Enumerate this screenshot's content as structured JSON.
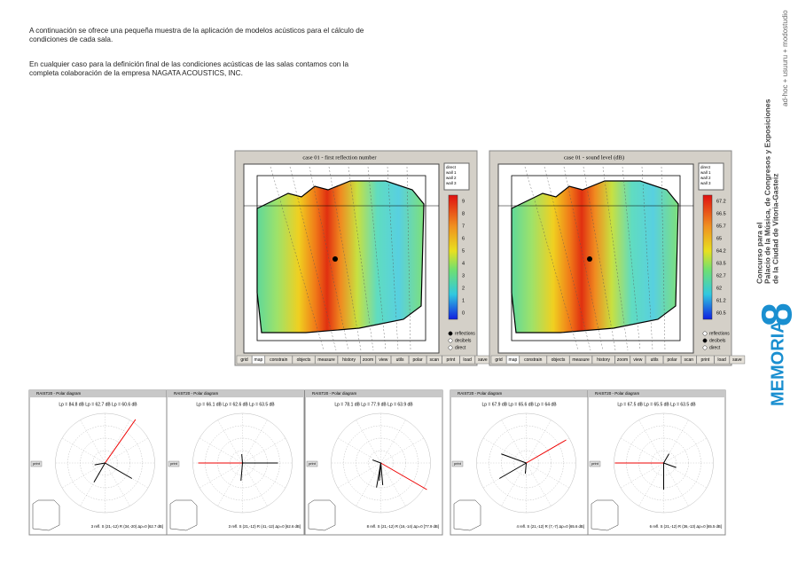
{
  "intro": [
    "A continuación se ofrece una pequeña muestra de la aplicación de modelos acústicos para el cálculo de condiciones de cada sala.",
    "En cualquier caso para la definición final de las condiciones acústicas de las salas contamos con la completa colaboración de la empresa NAGATA ACOUSTICS, INC."
  ],
  "sidebar": {
    "authors": "ad-hoc + usuuru + modostudio",
    "project": [
      "Concurso para el",
      "Palacio de la Música, de Congresos y Exposiciones",
      "de la Ciudad de Vitoria-Gasteiz"
    ],
    "section": "MEMORIA",
    "number": "8"
  },
  "toolbar": [
    "grid",
    "map",
    "constrain",
    "objects",
    "measure",
    "history",
    "zoom",
    "view",
    "utils",
    "polar",
    "scan",
    "print",
    "load",
    "save"
  ],
  "surfaces": [
    "direct",
    "wall 1",
    "wall 2",
    "wall 3"
  ],
  "modes": [
    "reflections",
    "decibels",
    "direct"
  ],
  "simulations": [
    {
      "title": "case 01  -  first reflection number",
      "scale": [
        "9",
        "8",
        "7",
        "6",
        "5",
        "4",
        "3",
        "2",
        "1",
        "0"
      ]
    },
    {
      "title": "case 01  -  sound level (dB)",
      "scale": [
        "67.2",
        "66.5",
        "65.7",
        "65",
        "64.2",
        "63.5",
        "62.7",
        "62",
        "61.2",
        "60.5"
      ]
    }
  ],
  "polar_window": "RAIST20 - Polar diagram",
  "polar_button": "print",
  "polars": [
    {
      "levels": "Lp = 84.8 dB   Lp = 62.7 dB   Lp = 60.6 dB",
      "footer": "3 refl. S (21,-12)  R (34,-20)  Δp=0  [62.7 dB]"
    },
    {
      "levels": "Lp = 66.1 dB   Lp = 62.6 dB   Lp = 63.5 dB",
      "footer": "3 refl. S (21,-12)  R (41,-12)  Δp=0  [62.6 dB]"
    },
    {
      "levels": "Lp = 78.1 dB   Lp = 77.9 dB   Lp = 63.9 dB",
      "footer": "8 refl. S (21,-12)  R (16,-14)  Δp=0  [77.9 dB]"
    },
    {
      "levels": "Lp = 67.9 dB   Lp = 65.6 dB   Lp = 64 dB",
      "footer": "4 refl. S (21,-12)  R (7,-7)  Δp=0  [65.6 dB]"
    },
    {
      "levels": "Lp = 67.5 dB   Lp = 65.5 dB   Lp = 63.5 dB",
      "footer": "6 refl. S (21,-12)  R (36,-13)  Δp=0  [65.5 dB]"
    }
  ]
}
